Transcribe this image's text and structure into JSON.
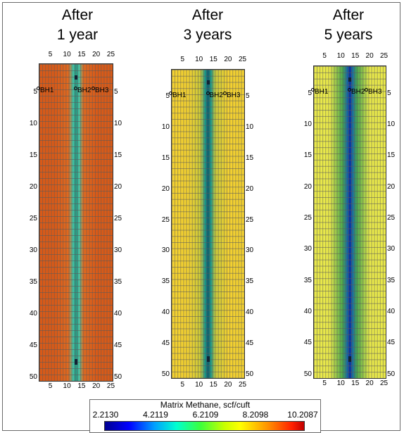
{
  "panels": [
    {
      "title_line1": "After",
      "title_line2": "1 year",
      "field": "#d85a18",
      "halo": "#e06a20",
      "core": "#3fc7a8",
      "stripe": "#2b8f7a"
    },
    {
      "title_line1": "After",
      "title_line2": "3 years",
      "field": "#f2d030",
      "halo": "#c8c83a",
      "core": "#1a9a8a",
      "stripe": "#0f5a6a"
    },
    {
      "title_line1": "After",
      "title_line2": "5 years",
      "field": "#e8e84a",
      "halo": "#4aa84a",
      "core": "#1a70a0",
      "stripe": "#0a2aa0"
    }
  ],
  "x_ticks": [
    "5",
    "10",
    "15",
    "20",
    "25"
  ],
  "y_ticks": [
    "5",
    "10",
    "15",
    "20",
    "25",
    "30",
    "35",
    "40",
    "45",
    "50"
  ],
  "wells": [
    "BH1",
    "BH2",
    "BH3"
  ],
  "legend": {
    "title": "Matrix Methane, scf/cuft",
    "values": [
      "2.2130",
      "4.2119",
      "6.2109",
      "8.2098",
      "10.2087"
    ]
  },
  "colors": {
    "grid_line": "#7a7a7a",
    "frame": "#6b6b6b"
  }
}
